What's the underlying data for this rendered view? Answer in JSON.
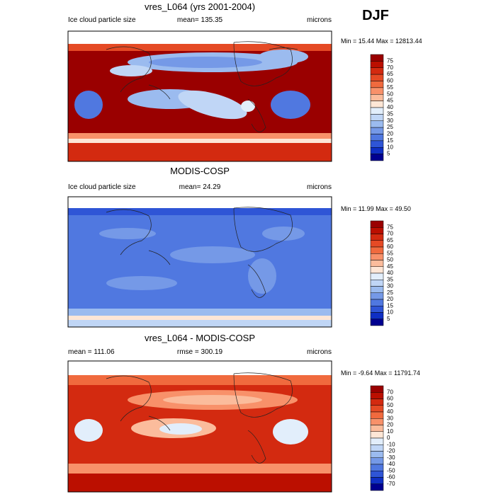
{
  "season": "DJF",
  "panels": [
    {
      "title": "vres_L064 (yrs 2001-2004)",
      "left": "Ice cloud particle size",
      "center": "mean= 135.35",
      "right": "microns",
      "minmax": "Min =  15.44 Max = 12813.44",
      "colorbar": {
        "labels": [
          75,
          70,
          65,
          60,
          55,
          50,
          45,
          40,
          35,
          30,
          25,
          20,
          15,
          10,
          5
        ],
        "colors": [
          "#9a0000",
          "#bb0f00",
          "#d32a10",
          "#e54a25",
          "#f06a3e",
          "#f8916a",
          "#fbbc9c",
          "#fde6d6",
          "#e2eefb",
          "#c0d6f6",
          "#9bbbef",
          "#7599e7",
          "#5078e0",
          "#2f55d6",
          "#0f2fc4",
          "#000090"
        ]
      }
    },
    {
      "title": "MODIS-COSP",
      "left": "Ice cloud particle size",
      "center": "mean=  24.29",
      "right": "microns",
      "minmax": "Min =  11.99 Max =  49.50",
      "colorbar": {
        "labels": [
          75,
          70,
          65,
          60,
          55,
          50,
          45,
          40,
          35,
          30,
          25,
          20,
          15,
          10,
          5
        ],
        "colors": [
          "#9a0000",
          "#bb0f00",
          "#d32a10",
          "#e54a25",
          "#f06a3e",
          "#f8916a",
          "#fbbc9c",
          "#fde6d6",
          "#e2eefb",
          "#c0d6f6",
          "#9bbbef",
          "#7599e7",
          "#5078e0",
          "#2f55d6",
          "#0f2fc4",
          "#000090"
        ]
      }
    },
    {
      "title": "vres_L064 - MODIS-COSP",
      "left": "mean = 111.06",
      "center": "rmse = 300.19",
      "right": "microns",
      "minmax": "Min =  -9.64 Max = 11791.74",
      "colorbar": {
        "labels": [
          70,
          60,
          50,
          40,
          30,
          20,
          10,
          0,
          -10,
          -20,
          -30,
          -40,
          -50,
          -60,
          -70
        ],
        "colors": [
          "#9a0000",
          "#bb0f00",
          "#d32a10",
          "#e54a25",
          "#f06a3e",
          "#f8916a",
          "#fbbc9c",
          "#fde6d6",
          "#e2eefb",
          "#c0d6f6",
          "#9bbbef",
          "#7599e7",
          "#5078e0",
          "#2f55d6",
          "#0f2fc4",
          "#000090"
        ]
      }
    }
  ]
}
